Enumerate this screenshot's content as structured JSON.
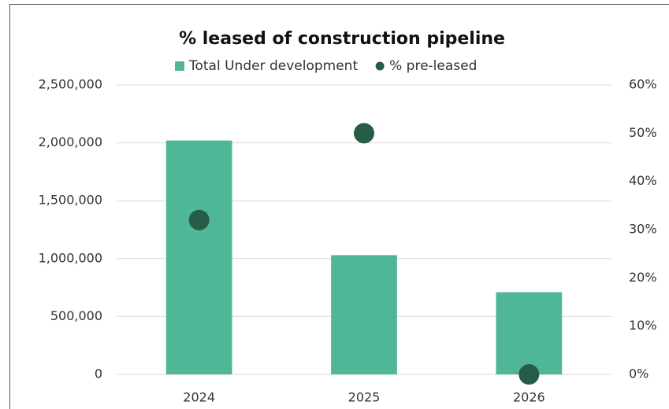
{
  "chart_data": {
    "type": "bar_dot",
    "title": "% leased of construction pipeline",
    "categories": [
      "2024",
      "2025",
      "2026"
    ],
    "series": [
      {
        "name": "Total Under development",
        "color": "#4fb797",
        "values": [
          2020000,
          1030000,
          710000
        ]
      },
      {
        "name": "% pre-leased",
        "color": "#275c47",
        "values": [
          32,
          50,
          0
        ],
        "axis": "y2"
      }
    ],
    "ylim": [
      0,
      2500000
    ],
    "yticks": [
      0,
      {
        "value": 500000,
        "label": "500,000"
      },
      {
        "value": 1000000,
        "label": "1,000,000"
      },
      {
        "value": 1500000,
        "label": "1,500,000"
      },
      {
        "value": 2000000,
        "label": "2,000,000"
      },
      {
        "value": 2500000,
        "label": "2,500,000"
      }
    ],
    "y2lim": [
      0,
      60
    ],
    "y2ticks": [
      {
        "value": 0,
        "label": "0%"
      },
      {
        "value": 10,
        "label": "10%"
      },
      {
        "value": 20,
        "label": "20%"
      },
      {
        "value": 30,
        "label": "30%"
      },
      {
        "value": 40,
        "label": "40%"
      },
      {
        "value": 50,
        "label": "50%"
      },
      {
        "value": 60,
        "label": "60%"
      }
    ],
    "grid": true,
    "legend": "top"
  }
}
